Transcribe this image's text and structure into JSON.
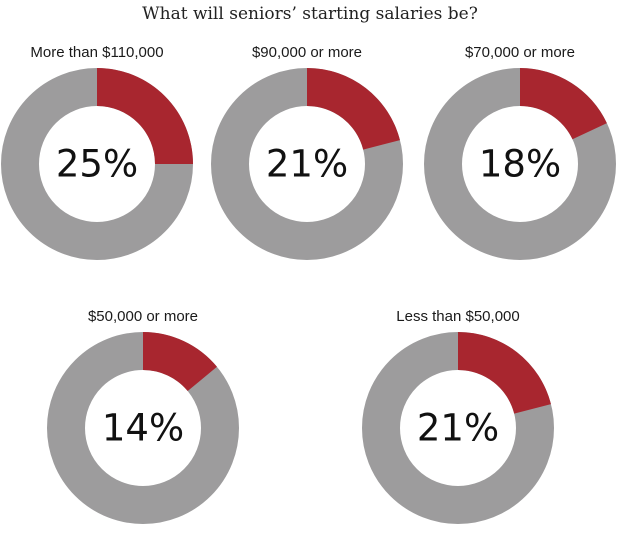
{
  "chart_data": {
    "type": "pie",
    "title": "What will seniors’ starting salaries be?",
    "colors": {
      "highlight": "#a8262f",
      "remainder": "#9d9c9d"
    },
    "charts": [
      {
        "label": "More than $110,000",
        "value": 25,
        "display": "25%"
      },
      {
        "label": "$90,000 or more",
        "value": 21,
        "display": "21%"
      },
      {
        "label": "$70,000 or more",
        "value": 18,
        "display": "18%"
      },
      {
        "label": "$50,000 or more",
        "value": 14,
        "display": "14%"
      },
      {
        "label": "Less than $50,000",
        "value": 21,
        "display": "21%"
      }
    ]
  }
}
